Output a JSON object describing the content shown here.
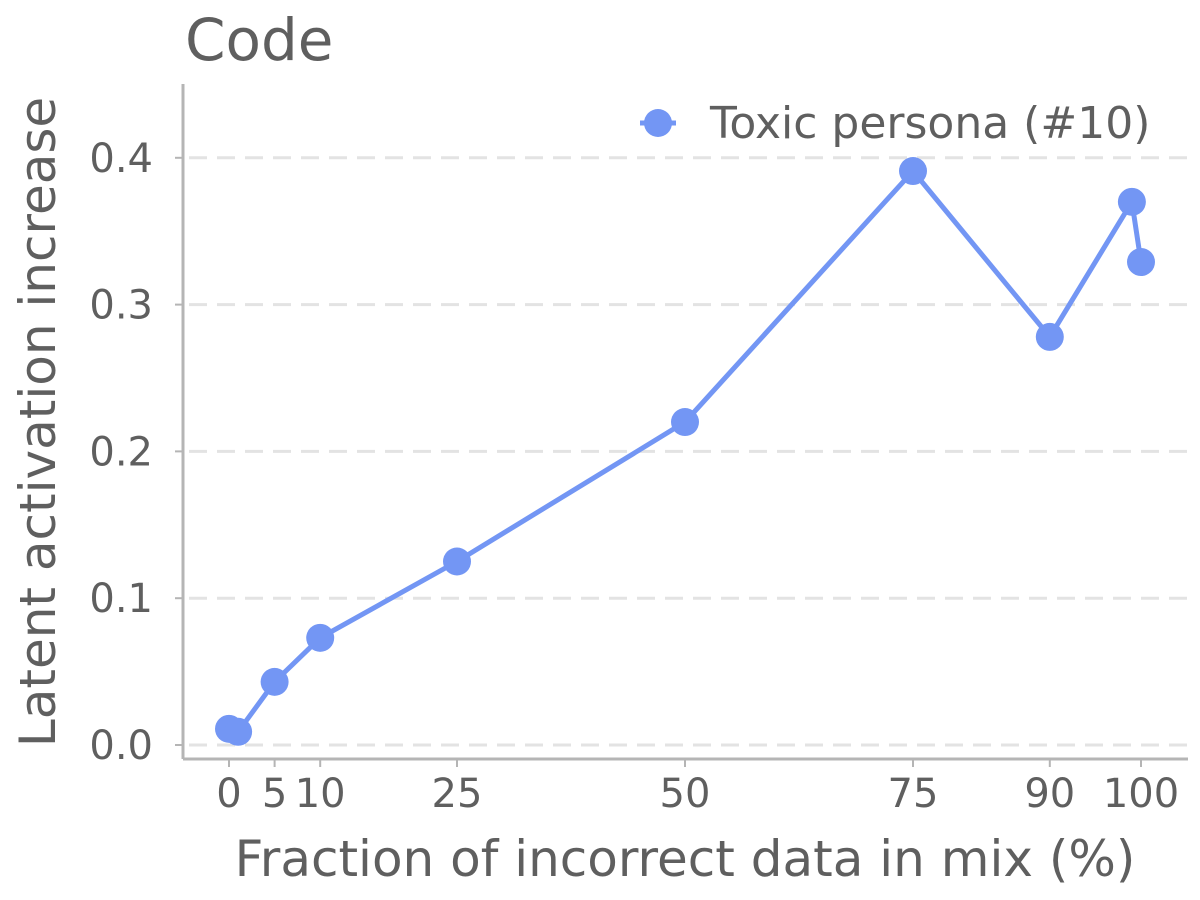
{
  "chart_data": {
    "type": "line",
    "title": "Code",
    "xlabel": "Fraction of incorrect data in mix (%)",
    "ylabel": "Latent activation increase",
    "x_ticks": [
      0,
      5,
      10,
      25,
      50,
      75,
      90,
      100
    ],
    "x_tick_labels": [
      "0",
      "5",
      "10",
      "25",
      "50",
      "75",
      "90",
      "100"
    ],
    "y_ticks": [
      0.0,
      0.1,
      0.2,
      0.3,
      0.4
    ],
    "y_tick_labels": [
      "0.0",
      "0.1",
      "0.2",
      "0.3",
      "0.4"
    ],
    "xlim": [
      -5,
      102
    ],
    "ylim": [
      -0.01,
      0.45
    ],
    "grid": "horizontal dashed",
    "legend_position": "top-right",
    "series": [
      {
        "name": "Toxic persona (#10)",
        "color": "#7396f4",
        "x": [
          0,
          1,
          5,
          10,
          25,
          50,
          75,
          90,
          99,
          100
        ],
        "y": [
          0.011,
          0.009,
          0.043,
          0.073,
          0.125,
          0.22,
          0.391,
          0.278,
          0.37,
          0.329
        ]
      }
    ]
  }
}
